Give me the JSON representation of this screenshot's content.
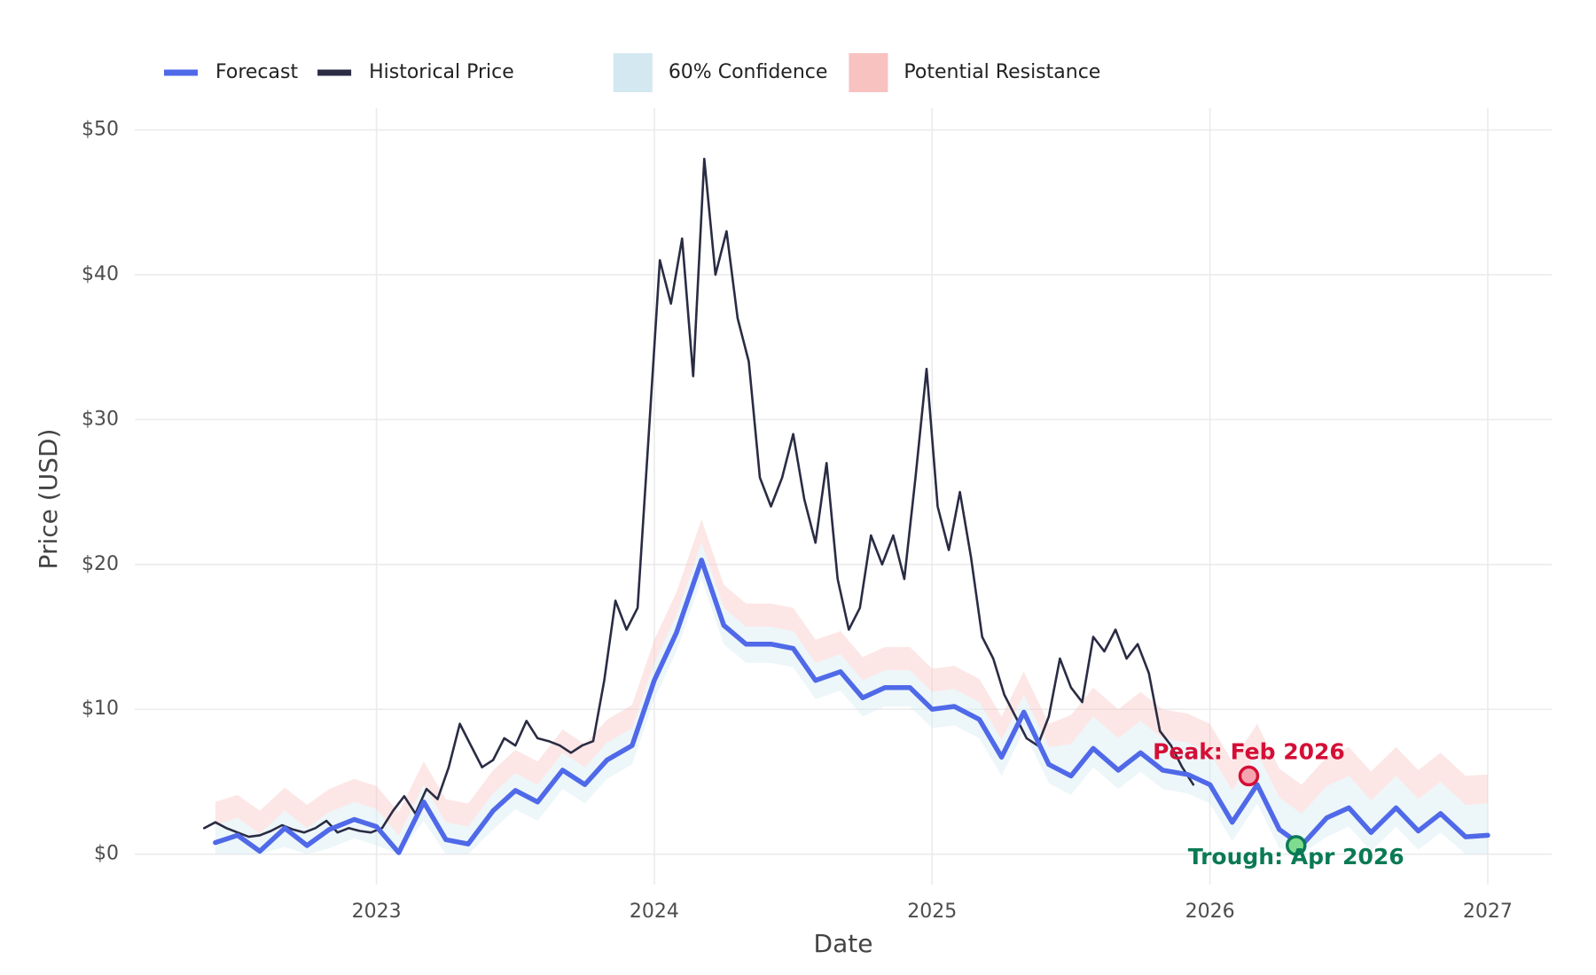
{
  "chart_data": {
    "type": "line",
    "x_label": "Date",
    "y_label": "Price (USD)",
    "xlim": [
      2022.13,
      2027.23
    ],
    "ylim": [
      -2.1,
      51.5
    ],
    "xticks": [
      2023,
      2024,
      2025,
      2026,
      2027
    ],
    "yticks": [
      {
        "value": 0,
        "label": "$0"
      },
      {
        "value": 10,
        "label": "$10"
      },
      {
        "value": 20,
        "label": "$20"
      },
      {
        "value": 30,
        "label": "$30"
      },
      {
        "value": 40,
        "label": "$40"
      },
      {
        "value": 50,
        "label": "$50"
      }
    ],
    "grid": true,
    "legend": "top",
    "series": [
      {
        "name": "Forecast",
        "kind": "line",
        "color": "#4f69e8",
        "x": [
          2022.42,
          2022.5,
          2022.58,
          2022.67,
          2022.75,
          2022.83,
          2022.92,
          2023.0,
          2023.08,
          2023.17,
          2023.25,
          2023.33,
          2023.42,
          2023.5,
          2023.58,
          2023.67,
          2023.75,
          2023.83,
          2023.92,
          2024.0,
          2024.08,
          2024.17,
          2024.25,
          2024.33,
          2024.42,
          2024.5,
          2024.58,
          2024.67,
          2024.75,
          2024.83,
          2024.92,
          2025.0,
          2025.08,
          2025.17,
          2025.25,
          2025.33,
          2025.42,
          2025.5,
          2025.58,
          2025.67,
          2025.75,
          2025.83,
          2025.92,
          2026.0,
          2026.08,
          2026.17,
          2026.25,
          2026.33,
          2026.42,
          2026.5,
          2026.58,
          2026.67,
          2026.75,
          2026.83,
          2026.92,
          2027.0
        ],
        "values": [
          0.8,
          1.3,
          0.2,
          1.8,
          0.6,
          1.7,
          2.4,
          1.9,
          0.1,
          3.6,
          1.0,
          0.7,
          3.0,
          4.4,
          3.6,
          5.8,
          4.8,
          6.5,
          7.5,
          12.0,
          15.3,
          20.3,
          15.8,
          14.5,
          14.5,
          14.2,
          12.0,
          12.6,
          10.8,
          11.5,
          11.5,
          10.0,
          10.2,
          9.3,
          6.7,
          9.8,
          6.2,
          5.4,
          7.3,
          5.8,
          7.0,
          5.8,
          5.5,
          4.8,
          2.2,
          4.8,
          1.7,
          0.6,
          2.5,
          3.2,
          1.5,
          3.2,
          1.6,
          2.8,
          1.2,
          1.3
        ]
      },
      {
        "name": "Historical Price",
        "kind": "line",
        "color": "#2a2c44",
        "x": [
          2022.38,
          2022.42,
          2022.46,
          2022.5,
          2022.54,
          2022.58,
          2022.62,
          2022.66,
          2022.7,
          2022.74,
          2022.78,
          2022.82,
          2022.86,
          2022.9,
          2022.94,
          2022.98,
          2023.02,
          2023.06,
          2023.1,
          2023.14,
          2023.18,
          2023.22,
          2023.26,
          2023.3,
          2023.34,
          2023.38,
          2023.42,
          2023.46,
          2023.5,
          2023.54,
          2023.58,
          2023.62,
          2023.66,
          2023.7,
          2023.74,
          2023.78,
          2023.82,
          2023.86,
          2023.9,
          2023.94,
          2023.98,
          2024.02,
          2024.06,
          2024.1,
          2024.14,
          2024.18,
          2024.22,
          2024.26,
          2024.3,
          2024.34,
          2024.38,
          2024.42,
          2024.46,
          2024.5,
          2024.54,
          2024.58,
          2024.62,
          2024.66,
          2024.7,
          2024.74,
          2024.78,
          2024.82,
          2024.86,
          2024.9,
          2024.94,
          2024.98,
          2025.02,
          2025.06,
          2025.1,
          2025.14,
          2025.18,
          2025.22,
          2025.26,
          2025.3,
          2025.34,
          2025.38,
          2025.42,
          2025.46,
          2025.5,
          2025.54,
          2025.58,
          2025.62,
          2025.66,
          2025.7,
          2025.74,
          2025.78,
          2025.82,
          2025.86,
          2025.9,
          2025.94
        ],
        "values": [
          1.8,
          2.2,
          1.8,
          1.5,
          1.2,
          1.3,
          1.6,
          2.0,
          1.7,
          1.5,
          1.8,
          2.3,
          1.5,
          1.8,
          1.6,
          1.5,
          1.8,
          3.0,
          4.0,
          2.8,
          4.5,
          3.8,
          6.0,
          9.0,
          7.5,
          6.0,
          6.5,
          8.0,
          7.5,
          9.2,
          8.0,
          7.8,
          7.5,
          7.0,
          7.5,
          7.8,
          12.0,
          17.5,
          15.5,
          17.0,
          29.0,
          41.0,
          38.0,
          42.5,
          33.0,
          48.0,
          40.0,
          43.0,
          37.0,
          34.0,
          26.0,
          24.0,
          26.0,
          29.0,
          24.5,
          21.5,
          27.0,
          19.0,
          15.5,
          17.0,
          22.0,
          20.0,
          22.0,
          19.0,
          26.0,
          33.5,
          24.0,
          21.0,
          25.0,
          20.5,
          15.0,
          13.5,
          11.0,
          9.5,
          8.0,
          7.5,
          9.5,
          13.5,
          11.5,
          10.5,
          15.0,
          14.0,
          15.5,
          13.5,
          14.5,
          12.5,
          8.5,
          7.5,
          6.0,
          4.8
        ]
      },
      {
        "name": "60% Confidence",
        "kind": "band",
        "color": "#d3e8f0",
        "lower": [
          0,
          0,
          0,
          0.5,
          0,
          0.4,
          1.1,
          0.6,
          0,
          2.3,
          0,
          0,
          1.7,
          3.1,
          2.3,
          4.5,
          3.5,
          5.2,
          6.2,
          10.7,
          14.0,
          19.0,
          14.5,
          13.2,
          13.2,
          12.9,
          10.7,
          11.3,
          9.5,
          10.2,
          10.2,
          8.7,
          8.9,
          8.0,
          5.4,
          8.5,
          4.9,
          4.1,
          6.0,
          4.5,
          5.7,
          4.5,
          4.2,
          3.5,
          0.9,
          3.5,
          0.4,
          0,
          1.2,
          1.9,
          0.2,
          1.9,
          0.3,
          1.5,
          0,
          0
        ],
        "upper": [
          2.0,
          2.5,
          1.4,
          3.0,
          1.8,
          2.9,
          3.6,
          3.1,
          1.3,
          4.8,
          2.2,
          1.9,
          4.2,
          5.6,
          4.8,
          7.0,
          6.0,
          7.7,
          8.7,
          13.2,
          16.5,
          21.5,
          17.0,
          15.7,
          15.7,
          15.4,
          13.2,
          13.8,
          12.0,
          12.7,
          12.7,
          11.2,
          11.4,
          10.5,
          7.9,
          11.0,
          7.4,
          7.6,
          9.5,
          8.0,
          9.2,
          8.0,
          7.7,
          7.0,
          4.4,
          7.0,
          3.9,
          2.8,
          4.7,
          5.4,
          3.7,
          5.4,
          3.8,
          5.0,
          3.4,
          3.5
        ]
      },
      {
        "name": "Potential Resistance",
        "kind": "band",
        "color": "#f7c2c0",
        "lower": [
          2.0,
          2.5,
          1.4,
          3.0,
          1.8,
          2.9,
          3.6,
          3.1,
          1.3,
          4.8,
          2.2,
          1.9,
          4.2,
          5.6,
          4.8,
          7.0,
          6.0,
          7.7,
          8.7,
          13.2,
          16.5,
          21.5,
          17.0,
          15.7,
          15.7,
          15.4,
          13.2,
          13.8,
          12.0,
          12.7,
          12.7,
          11.2,
          11.4,
          10.5,
          7.9,
          11.0,
          7.4,
          7.6,
          9.5,
          8.0,
          9.2,
          8.0,
          7.7,
          7.0,
          4.4,
          7.0,
          3.9,
          2.8,
          4.7,
          5.4,
          3.7,
          5.4,
          3.8,
          5.0,
          3.4,
          3.5
        ],
        "upper": [
          3.6,
          4.1,
          3.0,
          4.6,
          3.4,
          4.5,
          5.2,
          4.7,
          2.9,
          6.4,
          3.8,
          3.5,
          5.8,
          7.2,
          6.4,
          8.6,
          7.6,
          9.3,
          10.3,
          14.8,
          18.1,
          23.1,
          18.6,
          17.3,
          17.3,
          17.0,
          14.8,
          15.4,
          13.6,
          14.3,
          14.3,
          12.8,
          13.0,
          12.1,
          9.5,
          12.6,
          9.0,
          9.6,
          11.5,
          10.0,
          11.2,
          10.0,
          9.7,
          9.0,
          6.4,
          9.0,
          5.9,
          4.8,
          6.7,
          7.4,
          5.7,
          7.4,
          5.8,
          7.0,
          5.4,
          5.5
        ]
      }
    ],
    "annotations": [
      {
        "text": "Peak: Feb 2026",
        "x": 2026.14,
        "y": 5.4,
        "color": "#d40f37",
        "fill": "#f6a5b0",
        "position": "above"
      },
      {
        "text": "Trough: Apr 2026",
        "x": 2026.31,
        "y": 0.6,
        "color": "#0a7a55",
        "fill": "#7fdc8e",
        "position": "below"
      }
    ]
  }
}
